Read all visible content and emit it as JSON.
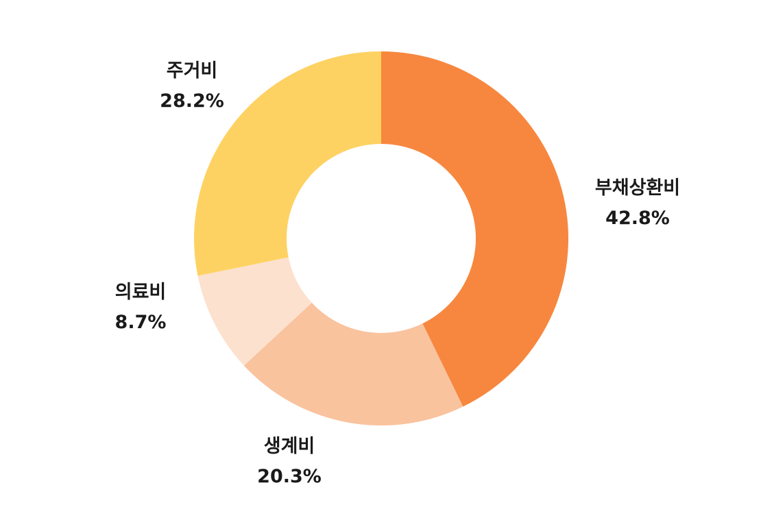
{
  "chart_data": {
    "type": "pie",
    "donut": true,
    "start": "12 o'clock",
    "direction": "clockwise",
    "legend": "none",
    "slices": [
      {
        "label": "부채상환비",
        "value": 42.8,
        "value_text": "42.8%",
        "color": "#F7873F"
      },
      {
        "label": "생계비",
        "value": 20.3,
        "value_text": "20.3%",
        "color": "#F9C39E"
      },
      {
        "label": "의료비",
        "value": 8.7,
        "value_text": "8.7%",
        "color": "#FCE1CE"
      },
      {
        "label": "주거비",
        "value": 28.2,
        "value_text": "28.2%",
        "color": "#FED262"
      }
    ]
  }
}
